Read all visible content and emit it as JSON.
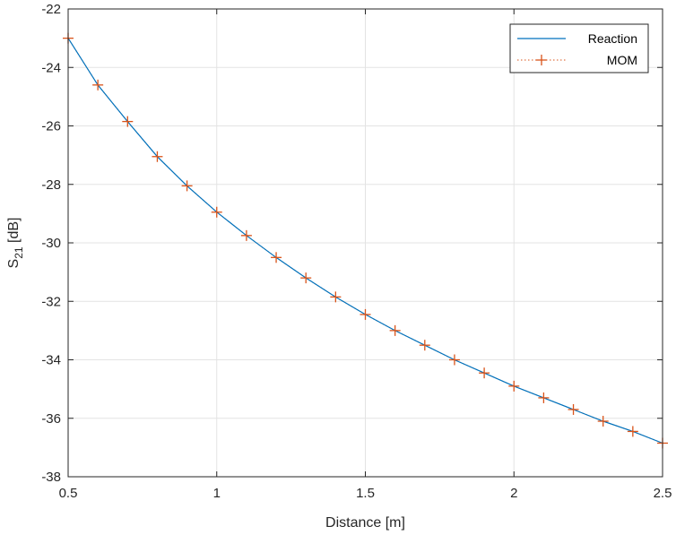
{
  "chart_data": {
    "type": "line",
    "title": "",
    "xlabel": "Distance [m]",
    "ylabel": {
      "base": "S",
      "subscript": "21",
      "suffix": " [dB]"
    },
    "xlim": [
      0.5,
      2.5
    ],
    "ylim": [
      -38,
      -22
    ],
    "xticks": [
      0.5,
      1,
      1.5,
      2,
      2.5
    ],
    "xtick_labels": [
      "0.5",
      "1",
      "1.5",
      "2",
      "2.5"
    ],
    "yticks": [
      -38,
      -36,
      -34,
      -32,
      -30,
      -28,
      -26,
      -24,
      -22
    ],
    "ytick_labels": [
      "-38",
      "-36",
      "-34",
      "-32",
      "-30",
      "-28",
      "-26",
      "-24",
      "-22"
    ],
    "grid": true,
    "legend_position": "top-right",
    "x": [
      0.5,
      0.6,
      0.7,
      0.8,
      0.9,
      1.0,
      1.1,
      1.2,
      1.3,
      1.4,
      1.5,
      1.6,
      1.7,
      1.8,
      1.9,
      2.0,
      2.1,
      2.2,
      2.3,
      2.4,
      2.5
    ],
    "series": [
      {
        "name": "Reaction",
        "style": "solid-line",
        "color": "#0072bd",
        "values": [
          -23.0,
          -24.6,
          -25.85,
          -27.05,
          -28.05,
          -28.95,
          -29.75,
          -30.5,
          -31.2,
          -31.85,
          -32.45,
          -33.0,
          -33.5,
          -34.0,
          -34.45,
          -34.9,
          -35.3,
          -35.7,
          -36.1,
          -36.45,
          -36.85
        ]
      },
      {
        "name": "MOM",
        "style": "dotted-line-plus-markers",
        "color": "#d95319",
        "values": [
          -23.0,
          -24.6,
          -25.85,
          -27.05,
          -28.05,
          -28.95,
          -29.75,
          -30.5,
          -31.2,
          -31.85,
          -32.45,
          -33.0,
          -33.5,
          -34.0,
          -34.45,
          -34.9,
          -35.3,
          -35.7,
          -36.1,
          -36.45,
          -36.85
        ]
      }
    ]
  }
}
